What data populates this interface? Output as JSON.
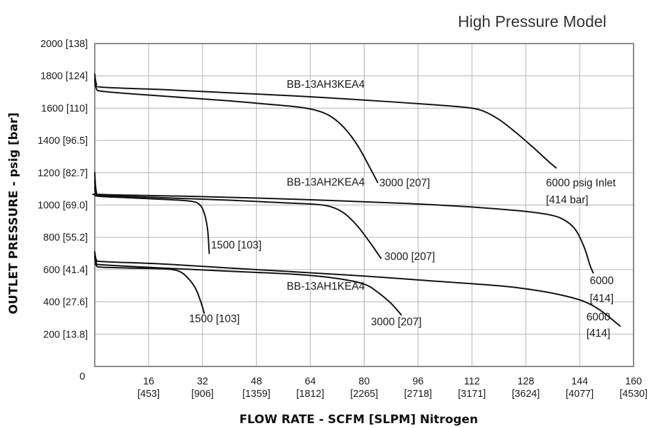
{
  "chart_data": {
    "type": "line",
    "title": "High Pressure Model",
    "xlabel": "FLOW RATE - SCFM [SLPM] Nitrogen",
    "ylabel": "OUTLET PRESSURE - psig [bar]",
    "xlim": [
      0,
      160
    ],
    "ylim": [
      0,
      2000
    ],
    "grid": true,
    "x_ticks": [
      {
        "value": 0,
        "label": "0",
        "sub": ""
      },
      {
        "value": 16,
        "label": "16",
        "sub": "[453]"
      },
      {
        "value": 32,
        "label": "32",
        "sub": "[906]"
      },
      {
        "value": 48,
        "label": "48",
        "sub": "[1359]"
      },
      {
        "value": 64,
        "label": "64",
        "sub": "[1812]"
      },
      {
        "value": 80,
        "label": "80",
        "sub": "[2265]"
      },
      {
        "value": 96,
        "label": "96",
        "sub": "[2718]"
      },
      {
        "value": 112,
        "label": "112",
        "sub": "[3171]"
      },
      {
        "value": 128,
        "label": "128",
        "sub": "[3624]"
      },
      {
        "value": 144,
        "label": "144",
        "sub": "[4077]"
      },
      {
        "value": 160,
        "label": "160",
        "sub": "[4530]"
      }
    ],
    "y_ticks": [
      {
        "value": 200,
        "label": "200 [13.8]"
      },
      {
        "value": 400,
        "label": "400 [27.6]"
      },
      {
        "value": 600,
        "label": "600 [41.4]"
      },
      {
        "value": 800,
        "label": "800 [55.2]"
      },
      {
        "value": 1000,
        "label": "1000 [69.0]"
      },
      {
        "value": 1200,
        "label": "1200 [82.7]"
      },
      {
        "value": 1400,
        "label": "1400 [96.5]"
      },
      {
        "value": 1600,
        "label": "1600 [110]"
      },
      {
        "value": 1800,
        "label": "1800 [124]"
      },
      {
        "value": 2000,
        "label": "2000 [138]"
      }
    ],
    "series": [
      {
        "name": "BB-13AH3KEA4 3000 [207]",
        "points": [
          [
            0,
            1780
          ],
          [
            0.5,
            1720
          ],
          [
            2,
            1705
          ],
          [
            10,
            1690
          ],
          [
            20,
            1675
          ],
          [
            30,
            1660
          ],
          [
            40,
            1645
          ],
          [
            50,
            1627
          ],
          [
            60,
            1608
          ],
          [
            66,
            1585
          ],
          [
            70,
            1550
          ],
          [
            74,
            1480
          ],
          [
            78,
            1370
          ],
          [
            82,
            1220
          ],
          [
            84,
            1140
          ]
        ]
      },
      {
        "name": "BB-13AH3KEA4 6000 psig Inlet [414 bar]",
        "points": [
          [
            0,
            1810
          ],
          [
            0.5,
            1750
          ],
          [
            2,
            1730
          ],
          [
            20,
            1715
          ],
          [
            40,
            1695
          ],
          [
            60,
            1675
          ],
          [
            80,
            1650
          ],
          [
            100,
            1622
          ],
          [
            110,
            1605
          ],
          [
            115,
            1585
          ],
          [
            120,
            1530
          ],
          [
            125,
            1450
          ],
          [
            130,
            1360
          ],
          [
            135,
            1265
          ],
          [
            137,
            1230
          ]
        ]
      },
      {
        "name": "BB-13AH2KEA4 1500 [103]",
        "points": [
          [
            0,
            1110
          ],
          [
            0.3,
            1070
          ],
          [
            1,
            1055
          ],
          [
            10,
            1045
          ],
          [
            20,
            1035
          ],
          [
            28,
            1025
          ],
          [
            31,
            1005
          ],
          [
            32.5,
            950
          ],
          [
            33.5,
            850
          ],
          [
            34,
            700
          ]
        ]
      },
      {
        "name": "BB-13AH2KEA4 3000 [207]",
        "points": [
          [
            0,
            1150
          ],
          [
            0.5,
            1070
          ],
          [
            2,
            1060
          ],
          [
            20,
            1045
          ],
          [
            40,
            1030
          ],
          [
            55,
            1015
          ],
          [
            65,
            1005
          ],
          [
            70,
            990
          ],
          [
            74,
            950
          ],
          [
            78,
            870
          ],
          [
            82,
            760
          ],
          [
            85,
            670
          ]
        ]
      },
      {
        "name": "BB-13AH2KEA4 6000 [414]",
        "points": [
          [
            0,
            1200
          ],
          [
            0.5,
            1080
          ],
          [
            2,
            1065
          ],
          [
            30,
            1053
          ],
          [
            60,
            1035
          ],
          [
            90,
            1012
          ],
          [
            110,
            990
          ],
          [
            128,
            960
          ],
          [
            136,
            935
          ],
          [
            140,
            900
          ],
          [
            143,
            840
          ],
          [
            145.5,
            730
          ],
          [
            147,
            630
          ],
          [
            148,
            580
          ]
        ]
      },
      {
        "name": "BB-13AH1KEA4 1500 [103]",
        "points": [
          [
            0,
            680
          ],
          [
            0.5,
            625
          ],
          [
            2,
            615
          ],
          [
            10,
            610
          ],
          [
            20,
            605
          ],
          [
            25,
            590
          ],
          [
            28,
            540
          ],
          [
            30,
            480
          ],
          [
            31.5,
            400
          ],
          [
            32.5,
            330
          ]
        ]
      },
      {
        "name": "BB-13AH1KEA4 3000 [207]",
        "points": [
          [
            0,
            690
          ],
          [
            0.5,
            640
          ],
          [
            2,
            630
          ],
          [
            20,
            610
          ],
          [
            40,
            590
          ],
          [
            60,
            570
          ],
          [
            72,
            545
          ],
          [
            80,
            510
          ],
          [
            84,
            460
          ],
          [
            88,
            390
          ],
          [
            91,
            320
          ]
        ]
      },
      {
        "name": "BB-13AH1KEA4 6000 [414]",
        "points": [
          [
            0,
            710
          ],
          [
            0.5,
            660
          ],
          [
            2,
            650
          ],
          [
            20,
            635
          ],
          [
            40,
            610
          ],
          [
            60,
            585
          ],
          [
            80,
            560
          ],
          [
            100,
            530
          ],
          [
            120,
            500
          ],
          [
            130,
            475
          ],
          [
            138,
            445
          ],
          [
            145,
            405
          ],
          [
            150,
            350
          ],
          [
            156,
            250
          ]
        ]
      }
    ],
    "annotations": [
      {
        "text": "BB-13AH3KEA4",
        "x": 57,
        "y": 1725
      },
      {
        "text": "3000 [207]",
        "x": 84.5,
        "y": 1115
      },
      {
        "text": "6000 psig Inlet",
        "x": 134,
        "y": 1115
      },
      {
        "text": "[414 bar]",
        "x": 134,
        "y": 1010
      },
      {
        "text": "BB-13AH2KEA4",
        "x": 57,
        "y": 1120
      },
      {
        "text": "1500 [103]",
        "x": 34.5,
        "y": 730
      },
      {
        "text": "3000 [207]",
        "x": 86,
        "y": 660
      },
      {
        "text": "6000",
        "x": 147,
        "y": 510
      },
      {
        "text": "[414]",
        "x": 147,
        "y": 400
      },
      {
        "text": "BB-13AH1KEA4",
        "x": 57,
        "y": 475
      },
      {
        "text": "1500 [103]",
        "x": 28,
        "y": 275
      },
      {
        "text": "3000 [207]",
        "x": 82,
        "y": 255
      },
      {
        "text": "6000",
        "x": 146,
        "y": 285
      },
      {
        "text": "[414]",
        "x": 146,
        "y": 185
      }
    ]
  }
}
